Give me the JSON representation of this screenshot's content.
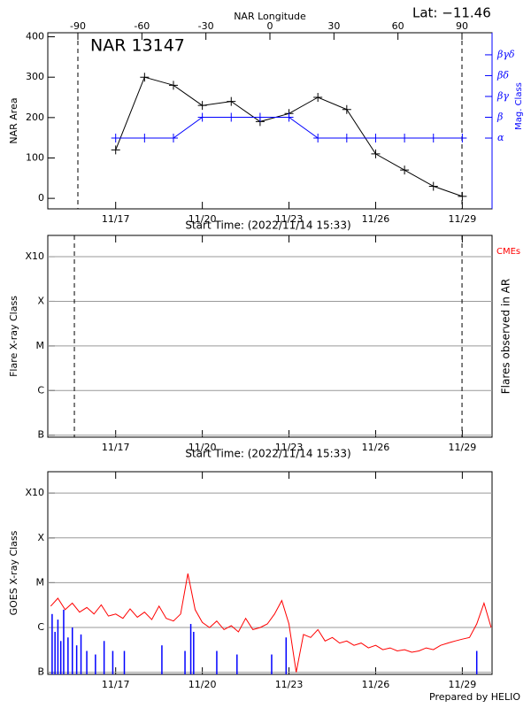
{
  "chart_data": [
    {
      "type": "line",
      "title": "NAR 13147",
      "annotation": "Lat: −11.46",
      "xlabel": "Start Time: (2022/11/14 15:33)",
      "ylabel": "NAR Area",
      "y2label": "Mag. Class",
      "x2label": "NAR Longitude",
      "xlim": [
        14.65,
        30.03
      ],
      "xticks": [
        {
          "value": 17,
          "label": "11/17"
        },
        {
          "value": 20,
          "label": "11/20"
        },
        {
          "value": 23,
          "label": "11/23"
        },
        {
          "value": 26,
          "label": "11/26"
        },
        {
          "value": 29,
          "label": "11/29"
        }
      ],
      "ylim": [
        -26,
        410
      ],
      "yticks": [
        0,
        100,
        200,
        300,
        400
      ],
      "y2lim": [
        -2.4,
        6.06
      ],
      "y2ticks": [
        {
          "value": 1,
          "label": "α"
        },
        {
          "value": 2,
          "label": "β"
        },
        {
          "value": 3,
          "label": "βγ"
        },
        {
          "value": 4,
          "label": "βδ"
        },
        {
          "value": 5,
          "label": "βγδ"
        }
      ],
      "x2lim": [
        -104.1,
        104.1
      ],
      "x2ticks": [
        -90,
        -60,
        -30,
        0,
        30,
        60,
        90
      ],
      "limb_lines": [
        -90,
        90
      ],
      "x": [
        17,
        18,
        19,
        20,
        21,
        22,
        23,
        24,
        25,
        26,
        27,
        28,
        29
      ],
      "series": [
        {
          "color": "#000000",
          "values": [
            120,
            300,
            280,
            230,
            240,
            190,
            210,
            250,
            220,
            110,
            70,
            30,
            5
          ]
        },
        {
          "color": "#0000ff",
          "axis": "y2",
          "values": [
            1,
            1,
            1,
            2,
            2,
            2,
            2,
            1,
            1,
            1,
            1,
            1,
            1
          ]
        }
      ]
    },
    {
      "type": "scatter",
      "xlabel": "Start Time: (2022/11/14 15:33)",
      "ylabel": "Flare X-ray Class",
      "y2label": "Flares observed in AR",
      "annotation": {
        "text": "CMEs",
        "color": "#ff0000"
      },
      "xlim": [
        14.65,
        30.03
      ],
      "xticks": [
        {
          "value": 17,
          "label": "11/17"
        },
        {
          "value": 20,
          "label": "11/20"
        },
        {
          "value": 23,
          "label": "11/23"
        },
        {
          "value": 26,
          "label": "11/26"
        },
        {
          "value": 29,
          "label": "11/29"
        }
      ],
      "log": true,
      "ylim": [
        9e-08,
        0.003
      ],
      "grid": true,
      "yticks": [
        {
          "value": 1e-07,
          "label": "B"
        },
        {
          "value": 1e-06,
          "label": "C"
        },
        {
          "value": 1e-05,
          "label": "M"
        },
        {
          "value": 0.0001,
          "label": "X"
        },
        {
          "value": 0.001,
          "label": "X10"
        }
      ],
      "limb_dates": [
        15.57,
        28.99
      ]
    },
    {
      "type": "line",
      "ylabel": "GOES X-ray Class",
      "footer": "Prepared by HELIO",
      "xlim": [
        14.65,
        30.03
      ],
      "xticks": [
        {
          "value": 17,
          "label": "11/17"
        },
        {
          "value": 20,
          "label": "11/20"
        },
        {
          "value": 23,
          "label": "11/23"
        },
        {
          "value": 26,
          "label": "11/26"
        },
        {
          "value": 29,
          "label": "11/29"
        }
      ],
      "log": true,
      "ylim": [
        9e-08,
        0.003
      ],
      "grid": true,
      "yticks": [
        {
          "value": 1e-07,
          "label": "B"
        },
        {
          "value": 1e-06,
          "label": "C"
        },
        {
          "value": 1e-05,
          "label": "M"
        },
        {
          "value": 0.0001,
          "label": "X"
        },
        {
          "value": 0.001,
          "label": "X10"
        }
      ],
      "series": [
        {
          "color": "#ff0000",
          "x": [
            14.75,
            15,
            15.25,
            15.5,
            15.75,
            16,
            16.25,
            16.5,
            16.75,
            17,
            17.25,
            17.5,
            17.75,
            18,
            18.25,
            18.5,
            18.75,
            19,
            19.25,
            19.5,
            19.75,
            20,
            20.25,
            20.5,
            20.75,
            21,
            21.25,
            21.5,
            21.75,
            22,
            22.25,
            22.5,
            22.75,
            23,
            23.25,
            23.5,
            23.75,
            24,
            24.25,
            24.5,
            24.75,
            25,
            25.25,
            25.5,
            25.75,
            26,
            26.25,
            26.5,
            26.75,
            27,
            27.25,
            27.5,
            27.75,
            28,
            28.25,
            28.5,
            28.75,
            29,
            29.25,
            29.5,
            29.75,
            30
          ],
          "values": [
            3e-06,
            4.5e-06,
            2.5e-06,
            3.5e-06,
            2.2e-06,
            2.8e-06,
            2e-06,
            3.2e-06,
            1.8e-06,
            2e-06,
            1.6e-06,
            2.6e-06,
            1.7e-06,
            2.2e-06,
            1.5e-06,
            3e-06,
            1.6e-06,
            1.4e-06,
            2e-06,
            1.6e-05,
            2.5e-06,
            1.3e-06,
            1e-06,
            1.4e-06,
            9e-07,
            1.1e-06,
            8e-07,
            1.6e-06,
            9e-07,
            1e-06,
            1.2e-06,
            2e-06,
            4e-06,
            1.2e-06,
            1e-07,
            7e-07,
            6e-07,
            9e-07,
            5e-07,
            6e-07,
            4.5e-07,
            5e-07,
            4e-07,
            4.5e-07,
            3.5e-07,
            4e-07,
            3.2e-07,
            3.5e-07,
            3e-07,
            3.2e-07,
            2.8e-07,
            3e-07,
            3.5e-07,
            3.2e-07,
            4e-07,
            4.5e-07,
            5e-07,
            5.5e-07,
            6e-07,
            1.2e-06,
            3.5e-06,
            1e-06
          ]
        },
        {
          "color": "#0000ff",
          "style": "bar",
          "x": [
            14.8,
            14.9,
            15.0,
            15.1,
            15.2,
            15.35,
            15.5,
            15.65,
            15.8,
            16.0,
            16.3,
            16.6,
            16.9,
            17.3,
            18.6,
            19.4,
            19.6,
            19.7,
            20.5,
            21.2,
            22.4,
            22.9,
            29.5
          ],
          "values": [
            2e-06,
            8e-07,
            1.5e-06,
            5e-07,
            2.5e-06,
            6e-07,
            1e-06,
            4e-07,
            7e-07,
            3e-07,
            2.5e-07,
            5e-07,
            3e-07,
            3e-07,
            4e-07,
            3e-07,
            1.2e-06,
            8e-07,
            3e-07,
            2.5e-07,
            2.5e-07,
            6e-07,
            3e-07
          ]
        }
      ]
    }
  ]
}
